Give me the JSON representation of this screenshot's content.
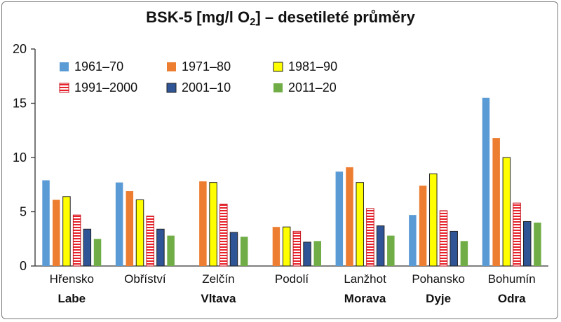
{
  "chart_data": {
    "type": "bar",
    "title_main": "BSK-5 [mg/l O",
    "title_sub": "2",
    "title_tail": "] – desetileté průměry",
    "xlabel": "",
    "ylabel": "",
    "ylim": [
      0,
      20
    ],
    "yticks": [
      "0",
      "5",
      "10",
      "15",
      "20"
    ],
    "categories": [
      "Hřensko",
      "Obříství",
      "Zelčín",
      "Podolí",
      "Lanžhot",
      "Pohansko",
      "Bohumín"
    ],
    "rivers": [
      "Labe",
      "",
      "Vltava",
      "",
      "Morava",
      "Dyje",
      "Odra"
    ],
    "legend_position": "top-left",
    "grid": false,
    "series": [
      {
        "name": "1961–70",
        "color": "#5b9bd5",
        "pattern": "solid",
        "values": [
          7.9,
          7.7,
          null,
          null,
          8.7,
          4.7,
          15.5
        ]
      },
      {
        "name": "1971–80",
        "color": "#ed7d31",
        "pattern": "solid",
        "values": [
          6.1,
          6.9,
          7.8,
          3.6,
          9.1,
          7.4,
          11.8
        ]
      },
      {
        "name": "1981–90",
        "color": "#ffff00",
        "pattern": "outlined",
        "values": [
          6.4,
          6.1,
          7.7,
          3.6,
          7.7,
          8.5,
          10.0
        ]
      },
      {
        "name": "1991–2000",
        "color": "#e8202a",
        "pattern": "striped",
        "values": [
          4.7,
          4.6,
          5.7,
          3.2,
          5.3,
          5.1,
          5.8
        ]
      },
      {
        "name": "2001–10",
        "color": "#2f5597",
        "pattern": "outlined",
        "values": [
          3.4,
          3.4,
          3.1,
          2.2,
          3.7,
          3.2,
          4.1
        ]
      },
      {
        "name": "2011–20",
        "color": "#70ad47",
        "pattern": "solid",
        "values": [
          2.5,
          2.8,
          2.7,
          2.3,
          2.8,
          2.3,
          4.0
        ]
      }
    ]
  }
}
